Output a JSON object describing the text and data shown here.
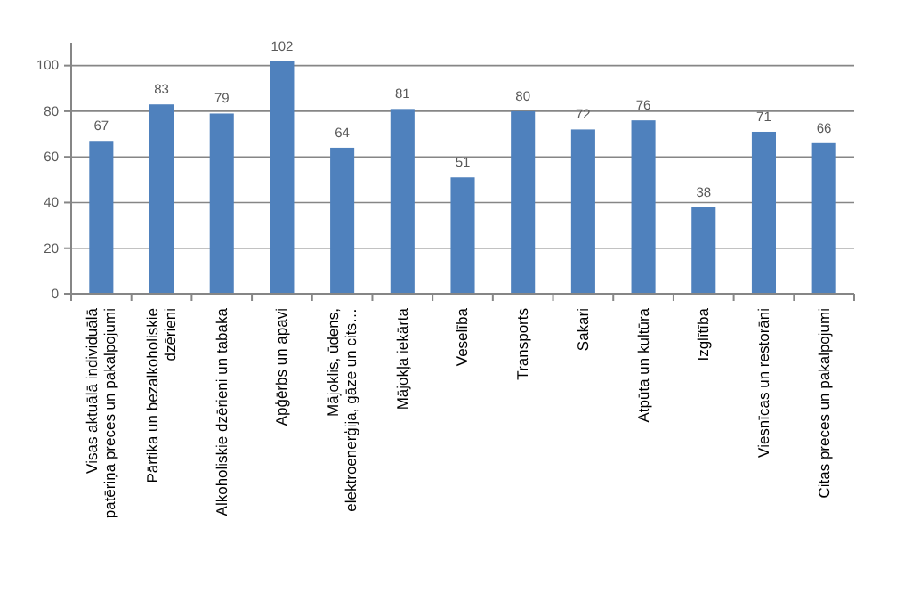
{
  "chart_data": {
    "type": "bar",
    "categories": [
      "Visas aktuālā individuālā patēriņa preces un pakalpojumi",
      "Pārtika un bezalkoholiskie dzērieni",
      "Alkoholiskie dzērieni un tabaka",
      "Apģērbs un apavi",
      "Mājoklis, ūdens, elektroenerģija, gāze un cits…",
      "Mājokļa iekārta",
      "Veselība",
      "Transports",
      "Sakari",
      "Atpūta un kultūra",
      "Izglītība",
      "Viesnīcas un restorāni",
      "Citas preces un pakalpojumi"
    ],
    "values": [
      67,
      83,
      79,
      102,
      64,
      81,
      51,
      80,
      72,
      76,
      38,
      71,
      66
    ],
    "color": "#4f81bd",
    "ylim": [
      0,
      110
    ],
    "yticks": [
      0,
      20,
      40,
      60,
      80,
      100
    ],
    "grid": "y",
    "data_labels": true
  }
}
